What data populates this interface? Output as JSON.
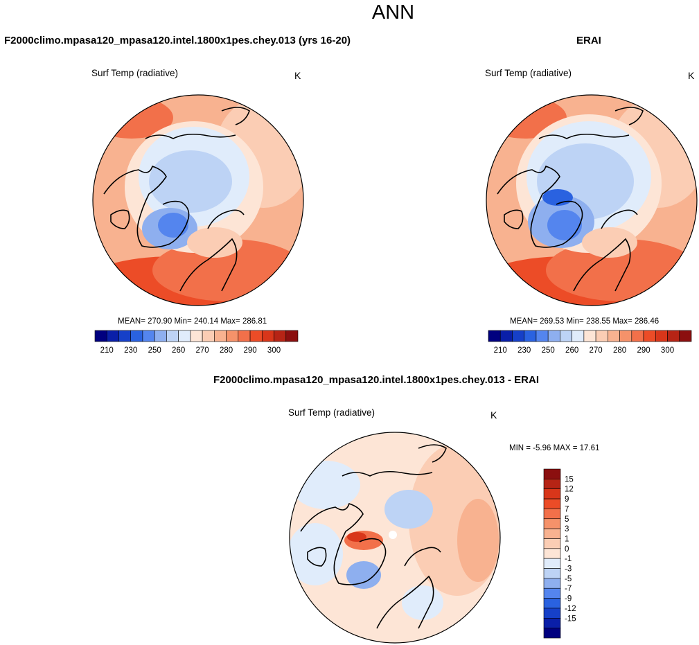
{
  "figure_title": "ANN",
  "panels": [
    {
      "title": "F2000climo.mpasa120_mpasa120.intel.1800x1pes.chey.013 (yrs 16-20)",
      "variable": "Surf Temp (radiative)",
      "units": "K",
      "stats": "MEAN= 270.90  Min= 240.14  Max= 286.81",
      "colorbar": {
        "colors": [
          "#00007f",
          "#0a1fa8",
          "#1640c8",
          "#2a62e0",
          "#5485ee",
          "#8eafef",
          "#bdd3f5",
          "#e0ecfb",
          "#fde5d6",
          "#fbcdb4",
          "#f8b290",
          "#f5926a",
          "#f2704a",
          "#ec4c27",
          "#d8361a",
          "#b62415",
          "#8b0f0f"
        ],
        "tick_labels": [
          "210",
          "230",
          "250",
          "260",
          "270",
          "280",
          "290",
          "300"
        ]
      }
    },
    {
      "title": "ERAI",
      "variable": "Surf Temp (radiative)",
      "units": "K",
      "stats": "MEAN= 269.53  Min= 238.55  Max= 286.46",
      "colorbar": {
        "colors": [
          "#00007f",
          "#0a1fa8",
          "#1640c8",
          "#2a62e0",
          "#5485ee",
          "#8eafef",
          "#bdd3f5",
          "#e0ecfb",
          "#fde5d6",
          "#fbcdb4",
          "#f8b290",
          "#f5926a",
          "#f2704a",
          "#ec4c27",
          "#d8361a",
          "#b62415",
          "#8b0f0f"
        ],
        "tick_labels": [
          "210",
          "230",
          "250",
          "260",
          "270",
          "280",
          "290",
          "300"
        ]
      }
    },
    {
      "title": "F2000climo.mpasa120_mpasa120.intel.1800x1pes.chey.013 - ERAI",
      "variable": "Surf Temp (radiative)",
      "units": "K",
      "stats": "MIN =  -5.96 MAX =  17.61",
      "colorbar": {
        "colors": [
          "#8b0f0f",
          "#b62415",
          "#d8361a",
          "#ec4c27",
          "#f2704a",
          "#f5926a",
          "#f8b290",
          "#fbcdb4",
          "#fde5d6",
          "#e0ecfb",
          "#bdd3f5",
          "#8eafef",
          "#5485ee",
          "#2a62e0",
          "#1640c8",
          "#0a1fa8",
          "#00007f"
        ],
        "tick_labels": [
          "15",
          "12",
          "9",
          "7",
          "5",
          "3",
          "1",
          "0",
          "-1",
          "-3",
          "-5",
          "-7",
          "-9",
          "-12",
          "-15"
        ]
      }
    }
  ],
  "chart_data": [
    {
      "type": "heatmap",
      "projection": "north-polar-stereographic",
      "title": "F2000climo.mpasa120_mpasa120.intel.1800x1pes.chey.013 (yrs 16-20)",
      "variable": "Surf Temp (radiative)",
      "units": "K",
      "mean": 270.9,
      "min": 240.14,
      "max": 286.81,
      "levels": [
        210,
        230,
        250,
        260,
        270,
        280,
        290,
        300
      ]
    },
    {
      "type": "heatmap",
      "projection": "north-polar-stereographic",
      "title": "ERAI",
      "variable": "Surf Temp (radiative)",
      "units": "K",
      "mean": 269.53,
      "min": 238.55,
      "max": 286.46,
      "levels": [
        210,
        230,
        250,
        260,
        270,
        280,
        290,
        300
      ]
    },
    {
      "type": "heatmap",
      "projection": "north-polar-stereographic",
      "title": "F2000climo.mpasa120_mpasa120.intel.1800x1pes.chey.013 - ERAI",
      "variable": "Surf Temp (radiative)",
      "units": "K",
      "min": -5.96,
      "max": 17.61,
      "levels": [
        15,
        12,
        9,
        7,
        5,
        3,
        1,
        0,
        -1,
        -3,
        -5,
        -7,
        -9,
        -12,
        -15
      ]
    }
  ]
}
